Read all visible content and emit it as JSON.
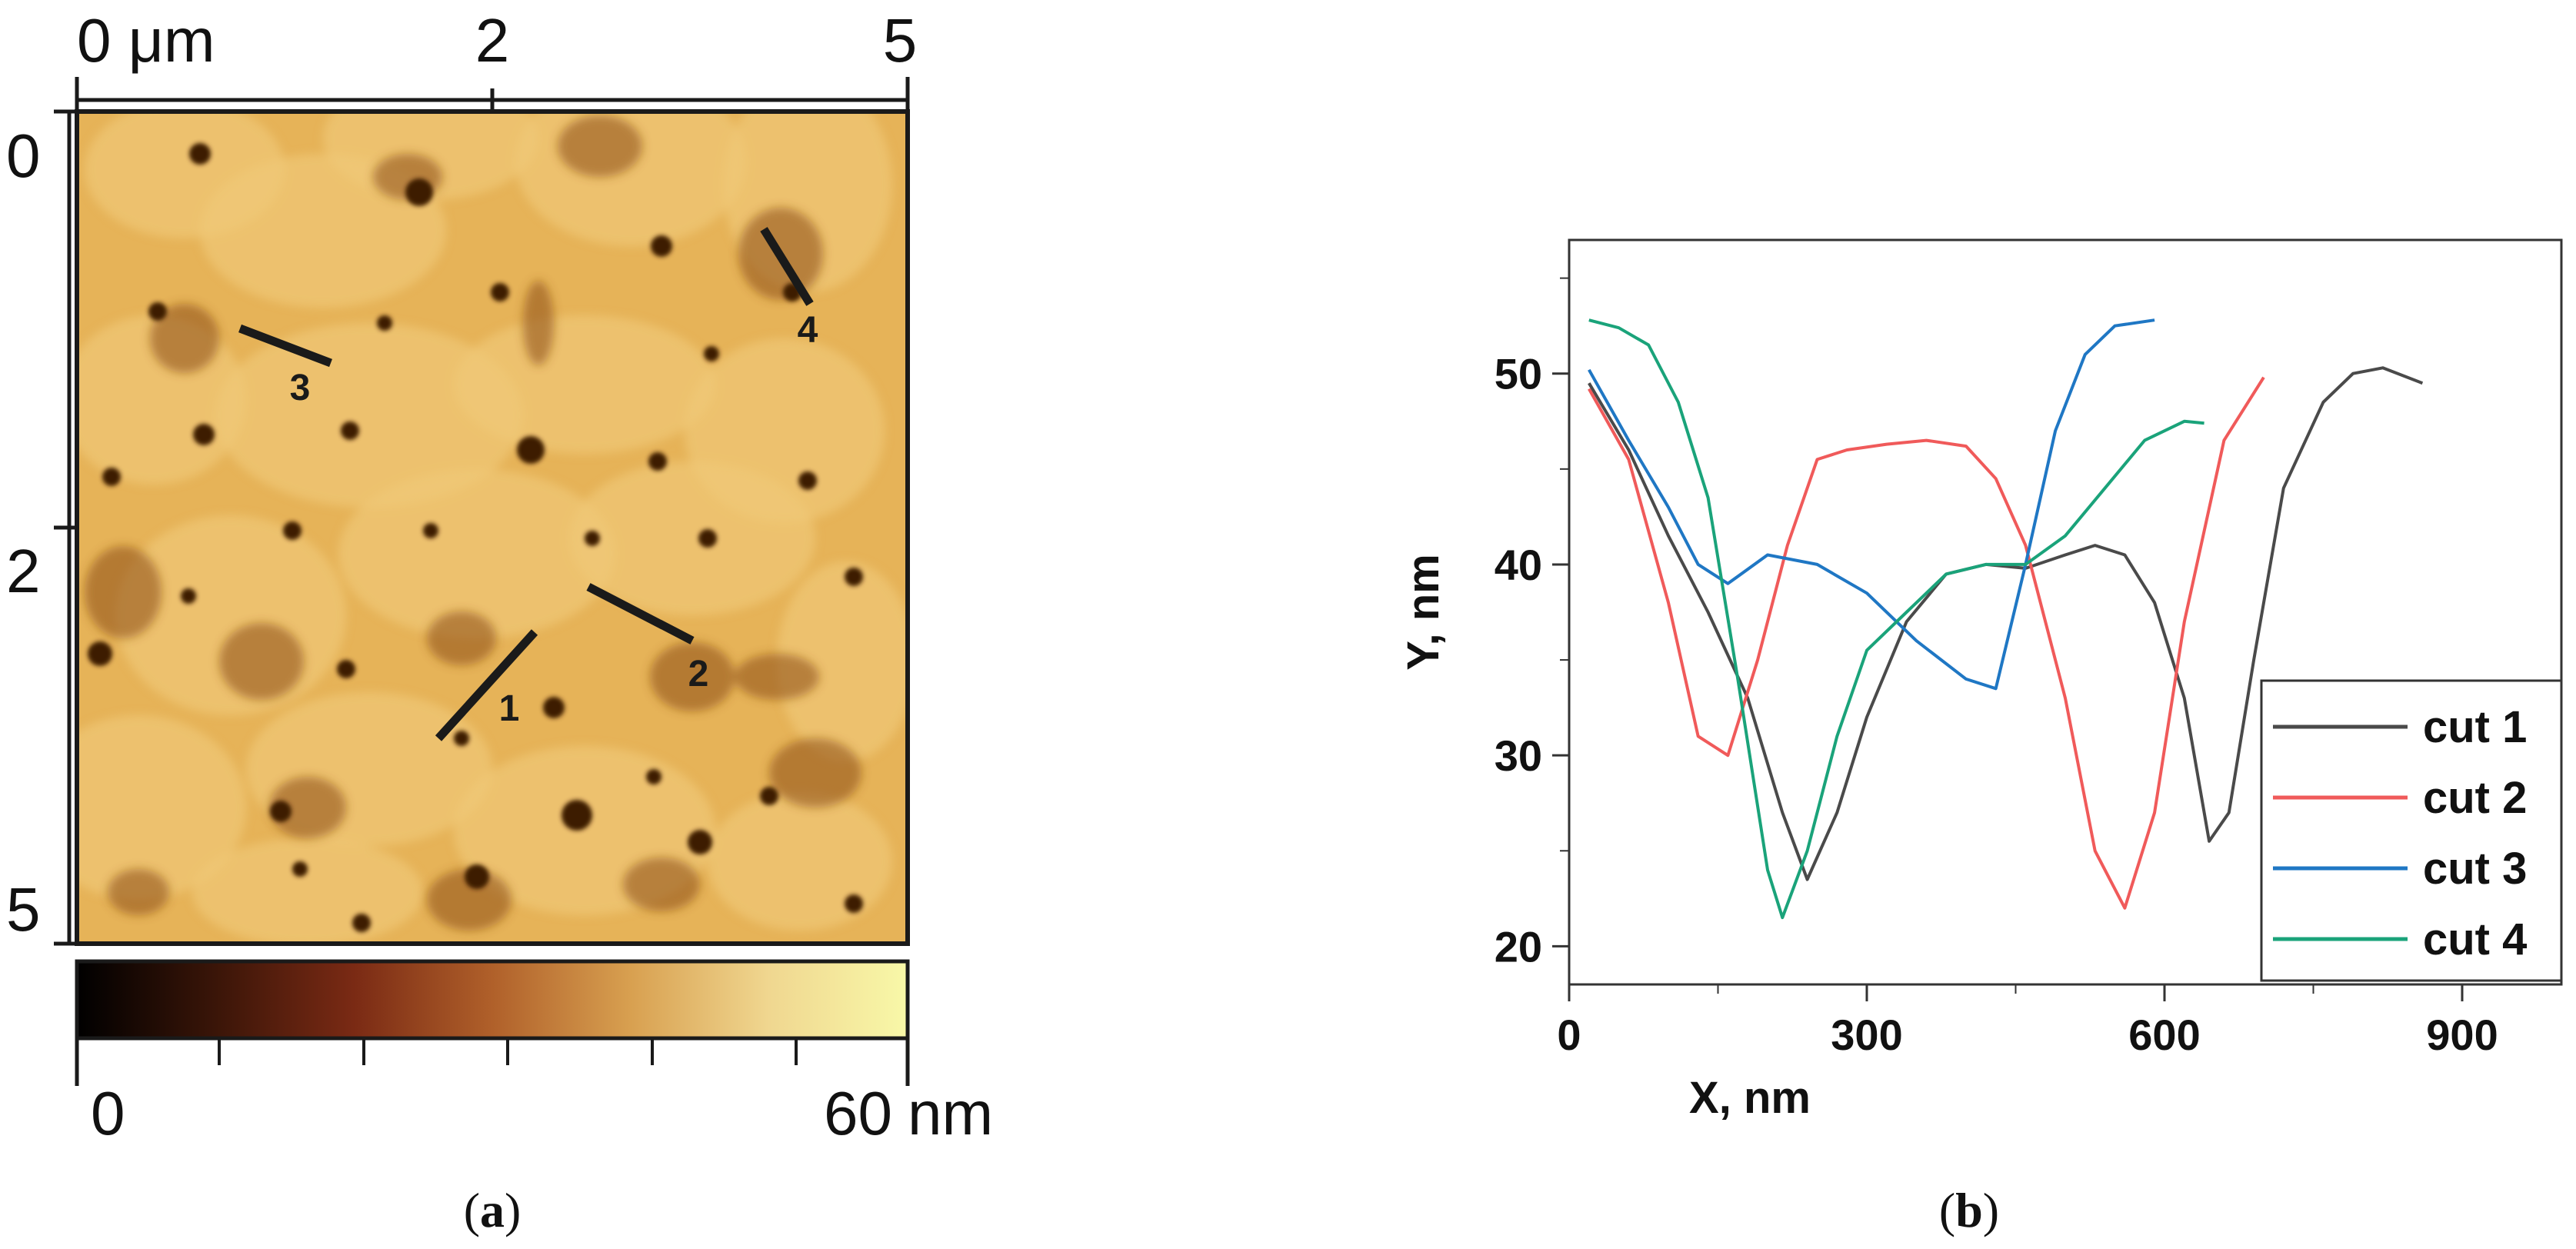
{
  "panel_a": {
    "label_open": "(",
    "label_letter": "a",
    "label_close": ")",
    "top_ticks": [
      "0 μm",
      "2",
      "5"
    ],
    "left_ticks": [
      "0",
      "2",
      "5"
    ],
    "colorbar": {
      "min_label": "0",
      "max_label": "60",
      "unit": "nm",
      "range": [
        0,
        60
      ],
      "colors": [
        "#000000",
        "#3a1508",
        "#7a2a14",
        "#b0602a",
        "#d8a050",
        "#f0d790",
        "#f8f8a8"
      ]
    },
    "map_colors": {
      "background": "#e6b358",
      "light": "#efc878",
      "pit": "#8a4a1a",
      "dark": "#3e1a06"
    },
    "cut_lines": [
      {
        "label": "1"
      },
      {
        "label": "2"
      },
      {
        "label": "3"
      },
      {
        "label": "4"
      }
    ]
  },
  "chart_data": {
    "type": "line",
    "title": "",
    "panel_label": "(b)",
    "xlabel": "X, nm",
    "ylabel": "Y, nm",
    "xlim": [
      0,
      1000
    ],
    "ylim": [
      18,
      57
    ],
    "xticks": [
      0,
      300,
      600,
      900
    ],
    "yticks": [
      20,
      30,
      40,
      50
    ],
    "legend_position": "bottom-right",
    "series": [
      {
        "name": "cut 1",
        "color": "#4a4a4a",
        "x": [
          20,
          60,
          100,
          140,
          180,
          215,
          240,
          270,
          300,
          340,
          380,
          420,
          460,
          500,
          530,
          560,
          590,
          620,
          645,
          665,
          690,
          720,
          760,
          790,
          820,
          860
        ],
        "y": [
          49.5,
          46,
          41.5,
          37.5,
          33,
          27,
          23.5,
          27,
          32,
          37,
          39.5,
          40,
          39.8,
          40.5,
          41,
          40.5,
          38,
          33,
          25.5,
          27,
          35,
          44,
          48.5,
          50,
          50.3,
          49.5
        ]
      },
      {
        "name": "cut 2",
        "color": "#f05a5a",
        "x": [
          20,
          60,
          100,
          130,
          160,
          190,
          220,
          250,
          280,
          320,
          360,
          400,
          430,
          460,
          500,
          530,
          560,
          590,
          620,
          660,
          700
        ],
        "y": [
          49.2,
          45.5,
          38,
          31,
          30,
          35,
          41,
          45.5,
          46,
          46.3,
          46.5,
          46.2,
          44.5,
          41,
          33,
          25,
          22,
          27,
          37,
          46.5,
          49.8
        ]
      },
      {
        "name": "cut 3",
        "color": "#1f77c4",
        "x": [
          20,
          60,
          100,
          130,
          160,
          200,
          250,
          300,
          350,
          400,
          430,
          460,
          490,
          520,
          550,
          590
        ],
        "y": [
          50.2,
          46.5,
          43,
          40,
          39,
          40.5,
          40,
          38.5,
          36,
          34,
          33.5,
          40,
          47,
          51,
          52.5,
          52.8
        ]
      },
      {
        "name": "cut 4",
        "color": "#1aa37a",
        "x": [
          20,
          50,
          80,
          110,
          140,
          170,
          200,
          215,
          240,
          270,
          300,
          340,
          380,
          420,
          460,
          500,
          540,
          580,
          620,
          640
        ],
        "y": [
          52.8,
          52.4,
          51.5,
          48.5,
          43.5,
          34,
          24,
          21.5,
          25,
          31,
          35.5,
          37.5,
          39.5,
          40,
          40,
          41.5,
          44,
          46.5,
          47.5,
          47.4
        ]
      }
    ]
  }
}
